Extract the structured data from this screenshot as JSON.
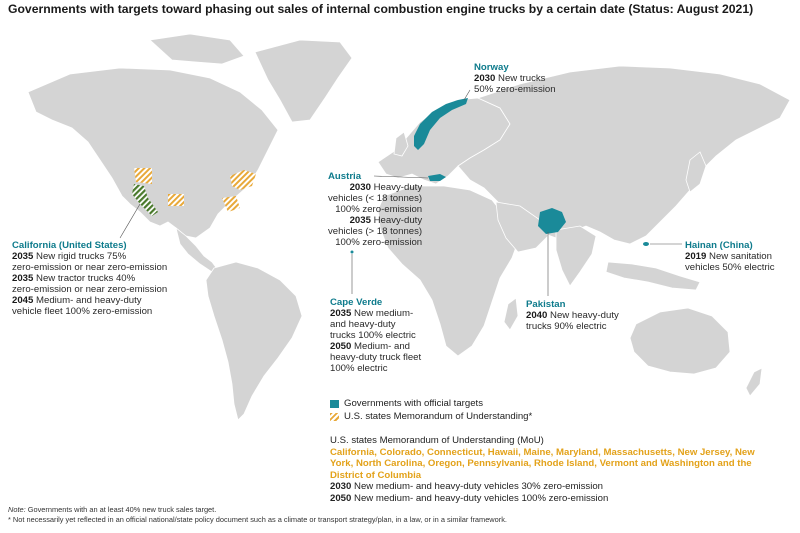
{
  "title": "Governments with targets toward phasing out sales of internal combustion engine trucks by a certain date (Status: August 2021)",
  "annotations": {
    "norway": {
      "country": "Norway",
      "lines": [
        {
          "year": "2030",
          "text": " New trucks"
        },
        {
          "year": "",
          "text": "50% zero-emission"
        }
      ]
    },
    "austria": {
      "country": "Austria",
      "lines": [
        {
          "year": "2030",
          "text": " Heavy-duty"
        },
        {
          "year": "",
          "text": "vehicles (< 18 tonnes)"
        },
        {
          "year": "",
          "text": "100% zero-emission"
        },
        {
          "year": "2035",
          "text": " Heavy-duty"
        },
        {
          "year": "",
          "text": "vehicles (> 18 tonnes)"
        },
        {
          "year": "",
          "text": "100% zero-emission"
        }
      ]
    },
    "california": {
      "country": "California (United States)",
      "lines": [
        {
          "year": "2035",
          "text": " New rigid trucks 75%"
        },
        {
          "year": "",
          "text": "zero-emission or near zero-emission"
        },
        {
          "year": "2035",
          "text": " New tractor trucks 40%"
        },
        {
          "year": "",
          "text": "zero-emission or near zero-emission"
        },
        {
          "year": "2045",
          "text": " Medium- and heavy-duty"
        },
        {
          "year": "",
          "text": "vehicle fleet 100% zero-emission"
        }
      ]
    },
    "cape_verde": {
      "country": "Cape Verde",
      "lines": [
        {
          "year": "2035",
          "text": " New medium-"
        },
        {
          "year": "",
          "text": "and heavy-duty"
        },
        {
          "year": "",
          "text": "trucks 100% electric"
        },
        {
          "year": "2050",
          "text": " Medium- and"
        },
        {
          "year": "",
          "text": "heavy-duty truck fleet"
        },
        {
          "year": "",
          "text": "100% electric"
        }
      ]
    },
    "pakistan": {
      "country": "Pakistan",
      "lines": [
        {
          "year": "2040",
          "text": " New heavy-duty"
        },
        {
          "year": "",
          "text": "trucks 90% electric"
        }
      ]
    },
    "hainan": {
      "country": "Hainan (China)",
      "lines": [
        {
          "year": "2019",
          "text": " New sanitation"
        },
        {
          "year": "",
          "text": "vehicles 50% electric"
        }
      ]
    }
  },
  "legend": {
    "official": "Governments with official targets",
    "mou": "U.S. states Memorandum of Understanding*"
  },
  "mou_block": {
    "heading": "U.S. states Memorandum of Understanding (MoU)",
    "states": "California, Colorado, Connecticut, Hawaii, Maine, Maryland, Massachusetts, New Jersey, New York, North Carolina, Oregon, Pennsylvania, Rhode Island, Vermont and Washington and the District of Columbia",
    "targets": [
      {
        "year": "2030",
        "text": " New medium- and heavy-duty vehicles 30% zero-emission"
      },
      {
        "year": "2050",
        "text": " New medium- and heavy-duty vehicles 100% zero-emission"
      }
    ]
  },
  "footnotes": {
    "note_label": "Note:",
    "note_text": " Governments with an at least 40% new truck sales target.",
    "asterisk": "* Not necessarily yet reflected in an official national/state policy document such as a climate or transport strategy/plan, in a law, or in a similar framework."
  },
  "colors": {
    "official": "#1a8a99",
    "mou": "#e8a93a",
    "land": "#d4d4d4",
    "california": "#4a7a2c"
  }
}
